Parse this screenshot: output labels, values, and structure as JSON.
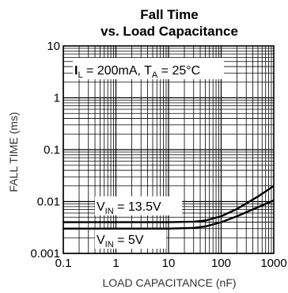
{
  "chart_data": {
    "type": "line",
    "title_line1": "Fall Time",
    "title_line2": "vs. Load Capacitance",
    "xlabel": "LOAD CAPACITANCE (nF)",
    "ylabel": "FALL TIME (ms)",
    "xscale": "log",
    "yscale": "log",
    "xlim": [
      0.1,
      1000
    ],
    "ylim": [
      0.001,
      10
    ],
    "grid": true,
    "x_ticks": [
      {
        "value": 0.1,
        "label": "0.1"
      },
      {
        "value": 1,
        "label": "1"
      },
      {
        "value": 10,
        "label": "10"
      },
      {
        "value": 100,
        "label": "100"
      },
      {
        "value": 1000,
        "label": "1000"
      }
    ],
    "y_ticks": [
      {
        "value": 0.001,
        "label": "0.001"
      },
      {
        "value": 0.01,
        "label": "0.01"
      },
      {
        "value": 0.1,
        "label": "0.1"
      },
      {
        "value": 1,
        "label": "1"
      },
      {
        "value": 10,
        "label": "10"
      }
    ],
    "conditions": {
      "current": {
        "main": "I",
        "sub": "L",
        "rest": " = 200mA, "
      },
      "temperature": {
        "main": "T",
        "sub": "A",
        "rest": " = 25°C"
      }
    },
    "series": [
      {
        "name": "VIN = 13.5V",
        "label": {
          "main": "V",
          "sub": "IN",
          "rest": " = 13.5V"
        },
        "x": [
          0.1,
          1,
          10,
          30,
          50,
          100,
          200,
          500,
          1000
        ],
        "y": [
          0.004,
          0.004,
          0.004,
          0.0041,
          0.0043,
          0.0052,
          0.0072,
          0.0125,
          0.02
        ]
      },
      {
        "name": "VIN = 5V",
        "label": {
          "main": "V",
          "sub": "IN",
          "rest": " = 5V"
        },
        "x": [
          0.1,
          1,
          10,
          30,
          50,
          100,
          200,
          500,
          1000
        ],
        "y": [
          0.003,
          0.003,
          0.003,
          0.0031,
          0.0033,
          0.004,
          0.0052,
          0.0078,
          0.0105
        ]
      }
    ]
  }
}
